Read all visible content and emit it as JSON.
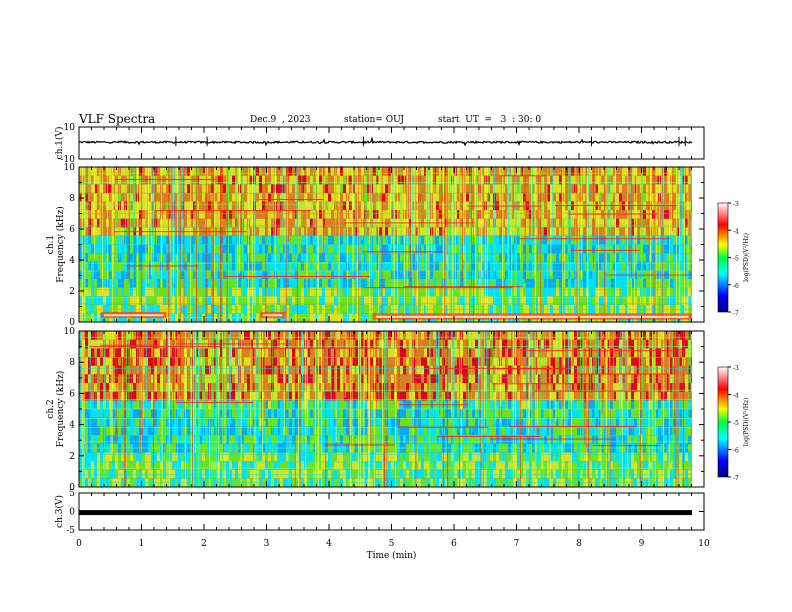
{
  "header": {
    "title": "VLF Spectra",
    "date": "Dec.9  , 2023",
    "station": "station= OUJ",
    "start": "start  UT  =   3  : 30: 0"
  },
  "chart_data": [
    {
      "type": "line",
      "panel": "ch1-waveform",
      "ylabel": "ch.1(V)",
      "ylim": [
        -10,
        10
      ],
      "y_ticks": [
        "10",
        "-10"
      ],
      "xlim": [
        0,
        10
      ],
      "series": [
        {
          "values_approx_constant": 0.5
        }
      ]
    },
    {
      "type": "heatmap",
      "panel": "ch1-spectrogram",
      "ylabel_line1": "ch.1",
      "ylabel_line2": "Frequency  (kHz)",
      "ylim": [
        0,
        10
      ],
      "y_ticks": [
        "0",
        "2",
        "4",
        "6",
        "8",
        "10"
      ],
      "xlim": [
        0,
        9.8
      ],
      "colorbar": {
        "label": "log(PSD)(V²/Hz)",
        "range": [
          -7,
          -3
        ],
        "ticks": [
          "-3",
          "-4",
          "-5",
          "-6",
          "-7"
        ]
      },
      "highlight_bands": [
        {
          "t0": 0.35,
          "t1": 1.4,
          "f": 0.4
        },
        {
          "t0": 2.9,
          "t1": 3.3,
          "f": 0.4
        },
        {
          "t0": 4.7,
          "t1": 9.8,
          "f": 0.3
        }
      ]
    },
    {
      "type": "heatmap",
      "panel": "ch2-spectrogram",
      "ylabel_line1": "ch.2",
      "ylabel_line2": "Frequency  (kHz)",
      "ylim": [
        0,
        10
      ],
      "y_ticks": [
        "0",
        "2",
        "4",
        "6",
        "8",
        "10"
      ],
      "xlim": [
        0,
        9.8
      ],
      "colorbar": {
        "label": "log(PSD)(V²/Hz)",
        "range": [
          -7,
          -3
        ],
        "ticks": [
          "-3",
          "-4",
          "-5",
          "-6",
          "-7"
        ]
      }
    },
    {
      "type": "line",
      "panel": "ch3-waveform",
      "ylabel": "ch.3(V)",
      "ylim": [
        -5,
        5
      ],
      "y_ticks": [
        "5",
        "0",
        "-5"
      ],
      "xlim": [
        0,
        10
      ],
      "series": [
        {
          "values_approx_constant": -0.3
        }
      ]
    }
  ],
  "x_axis": {
    "label": "Time  (min)",
    "ticks": [
      "0",
      "1",
      "2",
      "3",
      "4",
      "5",
      "6",
      "7",
      "8",
      "9",
      "10"
    ]
  },
  "colors": {
    "colormap": [
      "#00008b",
      "#0000ff",
      "#00bfff",
      "#00ffff",
      "#7fff00",
      "#ffff00",
      "#ff8c00",
      "#ff0000",
      "#8b0000"
    ]
  }
}
